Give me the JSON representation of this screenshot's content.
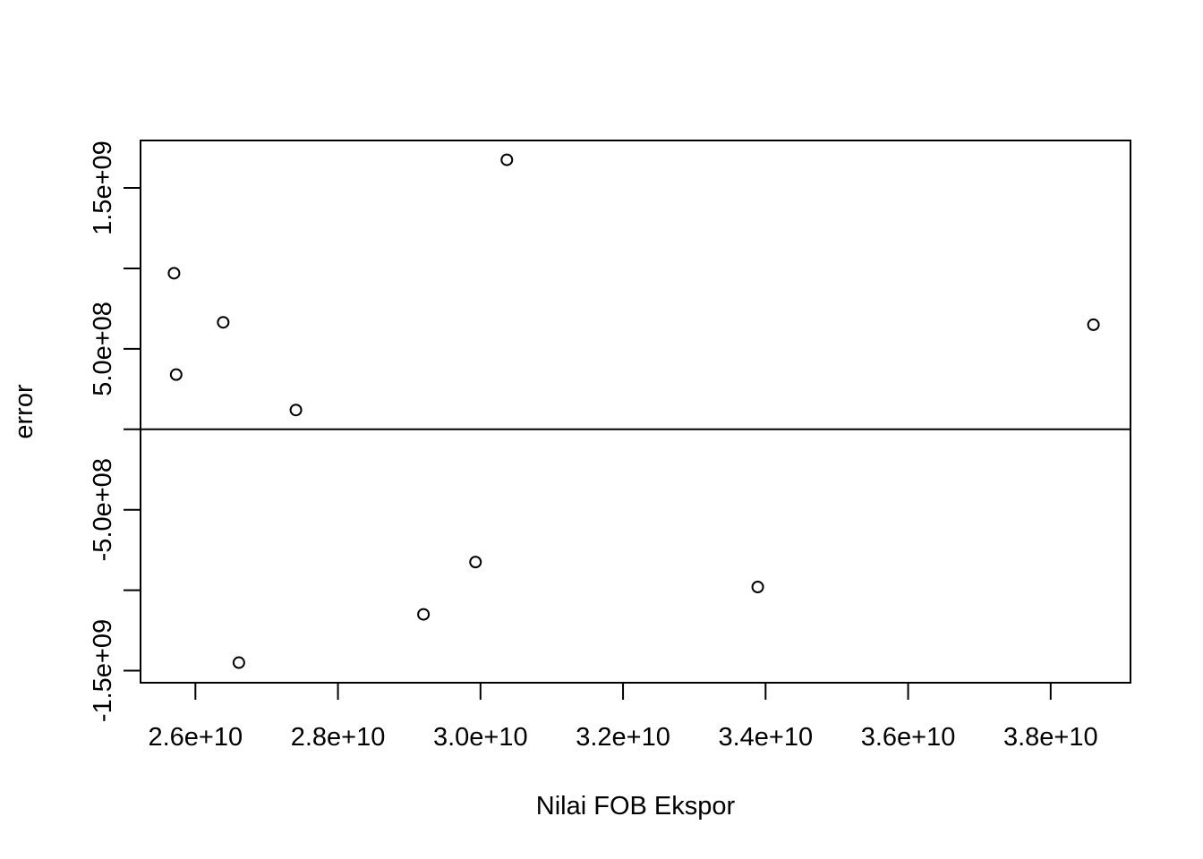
{
  "chart_data": {
    "type": "scatter",
    "title": "",
    "xlabel": "Nilai FOB Ekspor",
    "ylabel": "error",
    "xlim": [
      25230000000,
      39120000000
    ],
    "ylim": [
      -1575000000,
      1795000000
    ],
    "x_ticks": [
      26000000000,
      28000000000,
      30000000000,
      32000000000,
      34000000000,
      36000000000,
      38000000000
    ],
    "x_tick_labels": [
      "2.6e+10",
      "2.8e+10",
      "3.0e+10",
      "3.2e+10",
      "3.4e+10",
      "3.6e+10",
      "3.8e+10"
    ],
    "y_ticks": [
      -1500000000,
      -1000000000,
      -500000000,
      0,
      500000000,
      1000000000,
      1500000000
    ],
    "y_tick_labels": [
      "-1.5e+09",
      "",
      "-5.0e+08",
      "",
      "5.0e+08",
      "",
      "1.5e+09"
    ],
    "reference_line_y": 0,
    "grid": false,
    "point_style": "open-circle",
    "points": [
      {
        "x": 25700000000,
        "y": 970000000
      },
      {
        "x": 25730000000,
        "y": 340000000
      },
      {
        "x": 26390000000,
        "y": 665000000
      },
      {
        "x": 26610000000,
        "y": -1450000000
      },
      {
        "x": 27410000000,
        "y": 120000000
      },
      {
        "x": 29200000000,
        "y": -1150000000
      },
      {
        "x": 29930000000,
        "y": -825000000
      },
      {
        "x": 30370000000,
        "y": 1675000000
      },
      {
        "x": 33890000000,
        "y": -980000000
      },
      {
        "x": 38600000000,
        "y": 650000000
      }
    ]
  }
}
